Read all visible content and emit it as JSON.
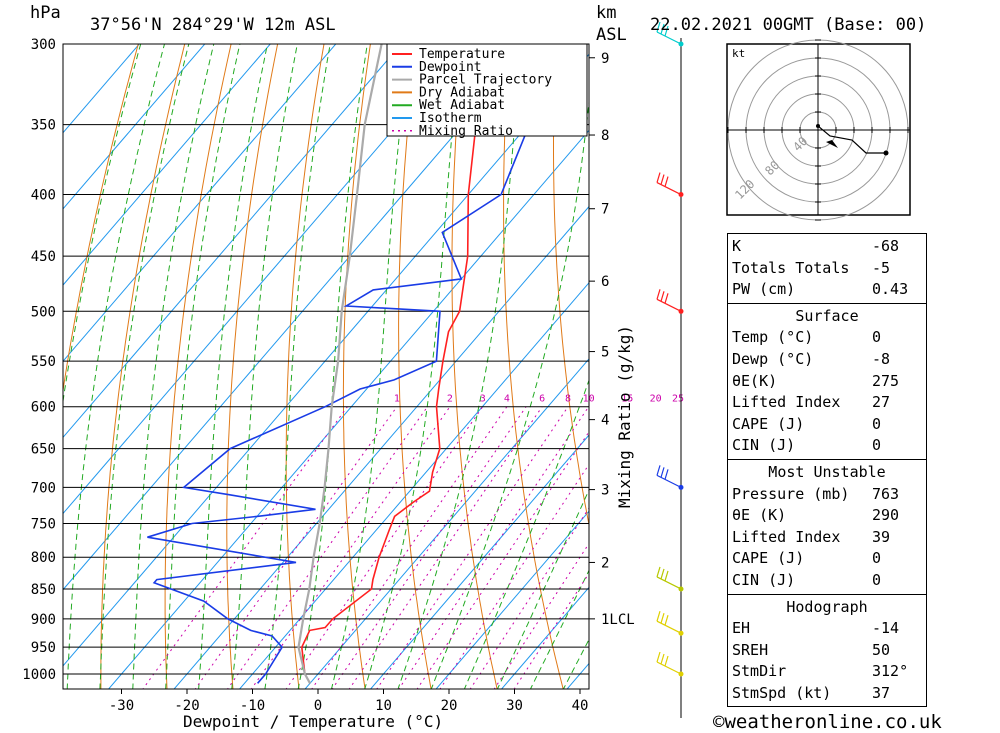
{
  "header": {
    "pressure_unit": "hPa",
    "location": "37°56'N  284°29'W  12m  ASL",
    "km_label": "km",
    "asl_label": "ASL",
    "datetime": "22.02.2021  00GMT  (Base: 00)"
  },
  "legend": [
    {
      "label": "Temperature",
      "color": "#ff2020",
      "dash": ""
    },
    {
      "label": "Dewpoint",
      "color": "#1a3ce6",
      "dash": ""
    },
    {
      "label": "Parcel Trajectory",
      "color": "#aaaaaa",
      "dash": ""
    },
    {
      "label": "Dry Adiabat",
      "color": "#e07a18",
      "dash": ""
    },
    {
      "label": "Wet Adiabat",
      "color": "#22aa22",
      "dash": ""
    },
    {
      "label": "Isotherm",
      "color": "#2299ee",
      "dash": ""
    },
    {
      "label": "Mixing Ratio",
      "color": "#cc00aa",
      "dash": "2,4"
    }
  ],
  "chart_data": {
    "type": "line",
    "title": "37°56'N  284°29'W  12m  ASL",
    "xlabel": "Dewpoint / Temperature (°C)",
    "ylabel": "hPa",
    "xlim": [
      -40,
      40
    ],
    "x_ticks": [
      -30,
      -20,
      -10,
      0,
      10,
      20,
      30,
      40
    ],
    "pressure_ticks": [
      300,
      350,
      400,
      450,
      500,
      550,
      600,
      650,
      700,
      750,
      800,
      850,
      900,
      950,
      1000
    ],
    "km_ticks": [
      {
        "label": "1LCL",
        "p": 900
      },
      {
        "label": "2",
        "p": 808
      },
      {
        "label": "3",
        "p": 703
      },
      {
        "label": "4",
        "p": 615
      },
      {
        "label": "5",
        "p": 540
      },
      {
        "label": "6",
        "p": 472
      },
      {
        "label": "7",
        "p": 411
      },
      {
        "label": "8",
        "p": 357
      },
      {
        "label": "9",
        "p": 308
      }
    ],
    "mixing_ratio_axis_label": "Mixing Ratio (g/kg)",
    "mixing_ratio_labels": [
      "1",
      "2",
      "3",
      "4",
      "6",
      "8",
      "10",
      "15",
      "20",
      "25"
    ],
    "series": [
      {
        "name": "Temperature",
        "color": "#ff2020",
        "points": [
          [
            1018,
            0
          ],
          [
            1000,
            -2
          ],
          [
            950,
            -6
          ],
          [
            920,
            -7
          ],
          [
            915,
            -5
          ],
          [
            900,
            -5
          ],
          [
            850,
            -3
          ],
          [
            835,
            -4
          ],
          [
            800,
            -6
          ],
          [
            760,
            -8
          ],
          [
            740,
            -9
          ],
          [
            720,
            -8
          ],
          [
            705,
            -7
          ],
          [
            680,
            -9
          ],
          [
            650,
            -11
          ],
          [
            600,
            -17
          ],
          [
            580,
            -19
          ],
          [
            550,
            -22
          ],
          [
            520,
            -25
          ],
          [
            500,
            -26
          ],
          [
            450,
            -32
          ],
          [
            400,
            -40
          ],
          [
            350,
            -48
          ],
          [
            300,
            -56
          ]
        ]
      },
      {
        "name": "Dewpoint",
        "color": "#1a3ce6",
        "points": [
          [
            1018,
            -8
          ],
          [
            1000,
            -8
          ],
          [
            950,
            -9
          ],
          [
            930,
            -12
          ],
          [
            920,
            -16
          ],
          [
            900,
            -21
          ],
          [
            870,
            -27
          ],
          [
            840,
            -37
          ],
          [
            835,
            -37
          ],
          [
            808,
            -18
          ],
          [
            770,
            -44
          ],
          [
            750,
            -39
          ],
          [
            740,
            -30
          ],
          [
            730,
            -22
          ],
          [
            710,
            -37
          ],
          [
            700,
            -45
          ],
          [
            650,
            -43
          ],
          [
            600,
            -34
          ],
          [
            580,
            -31
          ],
          [
            570,
            -27
          ],
          [
            550,
            -23
          ],
          [
            500,
            -29
          ],
          [
            495,
            -44
          ],
          [
            480,
            -42
          ],
          [
            470,
            -30
          ],
          [
            430,
            -39
          ],
          [
            400,
            -35
          ],
          [
            330,
            -42
          ],
          [
            320,
            -45
          ],
          [
            300,
            -52
          ]
        ]
      },
      {
        "name": "Parcel Trajectory",
        "color": "#aaaaaa",
        "points": [
          [
            1018,
            0
          ],
          [
            1000,
            -2
          ],
          [
            950,
            -6.5
          ],
          [
            900,
            -9.5
          ],
          [
            850,
            -12.5
          ],
          [
            800,
            -16
          ],
          [
            750,
            -19.5
          ],
          [
            700,
            -23.5
          ],
          [
            650,
            -28
          ],
          [
            600,
            -33
          ],
          [
            550,
            -38
          ],
          [
            500,
            -44
          ],
          [
            450,
            -50
          ],
          [
            400,
            -57
          ],
          [
            350,
            -65
          ],
          [
            300,
            -73
          ]
        ]
      }
    ],
    "isotherms_c": [
      -110,
      -100,
      -90,
      -80,
      -70,
      -60,
      -50,
      -40,
      -30,
      -20,
      -10,
      0,
      10,
      20,
      30,
      40
    ],
    "dry_adiabats_theta_k": [
      230,
      240,
      250,
      260,
      270,
      280,
      290,
      300,
      310,
      320,
      330,
      340,
      350,
      360,
      370,
      380,
      390,
      400,
      410,
      420,
      430,
      440,
      450,
      460
    ],
    "wet_adiabats_start_c": [
      -40,
      -35,
      -30,
      -25,
      -20,
      -15,
      -10,
      -5,
      0,
      5,
      10,
      15,
      20,
      25,
      30,
      35,
      40
    ],
    "mixing_ratios_gkg": [
      0.5,
      1,
      1.5,
      2,
      3,
      4,
      5,
      6,
      8,
      10,
      12,
      15,
      20,
      25,
      30
    ],
    "wind_barbs": [
      {
        "p": 300,
        "color": "#00cccc"
      },
      {
        "p": 400,
        "color": "#ff2020"
      },
      {
        "p": 500,
        "color": "#ff2020"
      },
      {
        "p": 700,
        "color": "#1a3ce6"
      },
      {
        "p": 850,
        "color": "#b8c800"
      },
      {
        "p": 925,
        "color": "#e0d000"
      },
      {
        "p": 1000,
        "color": "#e0d000"
      }
    ]
  },
  "hodograph": {
    "unit": "kt",
    "ring_labels": [
      "40",
      "80",
      "120"
    ]
  },
  "indices": {
    "k_label": "K",
    "k_value": "-68",
    "tt_label": "Totals Totals",
    "tt_value": "-5",
    "pw_label": "PW (cm)",
    "pw_value": "0.43"
  },
  "surface": {
    "title": "Surface",
    "temp_label": "Temp (°C)",
    "temp_value": "0",
    "dewp_label": "Dewp (°C)",
    "dewp_value": "-8",
    "theta_label": "θE(K)",
    "theta_value": "275",
    "li_label": "Lifted Index",
    "li_value": "27",
    "cape_label": "CAPE (J)",
    "cape_value": "0",
    "cin_label": "CIN (J)",
    "cin_value": "0"
  },
  "most_unstable": {
    "title": "Most Unstable",
    "pressure_label": "Pressure (mb)",
    "pressure_value": "763",
    "theta_label": "θE (K)",
    "theta_value": "290",
    "li_label": "Lifted Index",
    "li_value": "39",
    "cape_label": "CAPE (J)",
    "cape_value": "0",
    "cin_label": "CIN (J)",
    "cin_value": "0"
  },
  "hodo_stats": {
    "title": "Hodograph",
    "eh_label": "EH",
    "eh_value": "-14",
    "sreh_label": "SREH",
    "sreh_value": "50",
    "stmdir_label": "StmDir",
    "stmdir_value": "312°",
    "stmspd_label": "StmSpd (kt)",
    "stmspd_value": "37"
  },
  "footer": {
    "copyright": "©weatheronline.co.uk"
  }
}
